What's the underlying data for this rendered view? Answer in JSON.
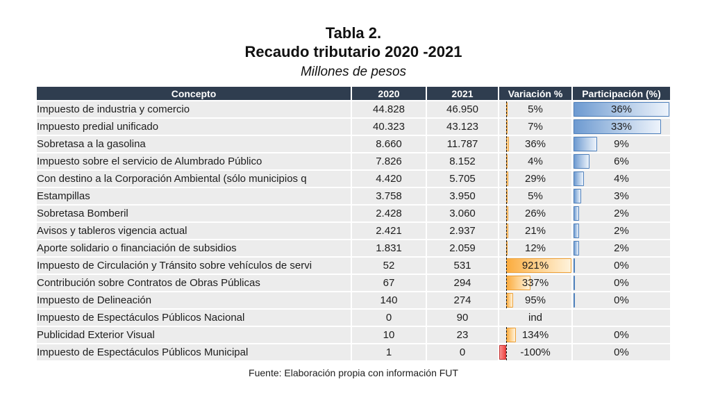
{
  "title": {
    "line1": "Tabla 2.",
    "line2": "Recaudo tributario 2020 -2021",
    "subtitle": "Millones de pesos"
  },
  "footer": "Fuente: Elaboración propia con información FUT",
  "colors": {
    "header_bg": "#2F3D4F",
    "row_bg": "#ECECEC",
    "header_text": "#FFFFFF",
    "body_text": "#1C1C1C",
    "blue_bar_fill": "#6D9AD1",
    "blue_bar_border": "#4F81BD",
    "orange_bar_fill": "#FBAC3F",
    "orange_bar_border": "#F0A136",
    "red_bar_fill": "#EF4341",
    "red_bar_border": "#C23434",
    "axis_dash": "#141414"
  },
  "chart_data": {
    "type": "table",
    "title": "Tabla 2. Recaudo tributario 2020 -2021",
    "subtitle": "Millones de pesos",
    "source": "Fuente: Elaboración propia con información FUT",
    "columns": [
      "Concepto",
      "2020",
      "2021",
      "Variación %",
      "Participación (%)"
    ],
    "bar_scaling": {
      "variacion_axis_min": -100,
      "variacion_axis_max": 921,
      "variacion_axis_position_pct": 10,
      "participacion_bar_max": 36
    },
    "rows": [
      {
        "concepto": "Impuesto de industria y comercio",
        "y2020": "44.828",
        "y2021": "46.950",
        "variacion": "5%",
        "variacion_value": 5,
        "participacion": "36%",
        "participacion_value": 36
      },
      {
        "concepto": "Impuesto predial unificado",
        "y2020": "40.323",
        "y2021": "43.123",
        "variacion": "7%",
        "variacion_value": 7,
        "participacion": "33%",
        "participacion_value": 33
      },
      {
        "concepto": "Sobretasa a la gasolina",
        "y2020": "8.660",
        "y2021": "11.787",
        "variacion": "36%",
        "variacion_value": 36,
        "participacion": "9%",
        "participacion_value": 9
      },
      {
        "concepto": "Impuesto sobre el servicio de Alumbrado Público",
        "y2020": "7.826",
        "y2021": "8.152",
        "variacion": "4%",
        "variacion_value": 4,
        "participacion": "6%",
        "participacion_value": 6
      },
      {
        "concepto": "Con destino a la Corporación Ambiental (sólo municipios q",
        "y2020": "4.420",
        "y2021": "5.705",
        "variacion": "29%",
        "variacion_value": 29,
        "participacion": "4%",
        "participacion_value": 4
      },
      {
        "concepto": "Estampillas",
        "y2020": "3.758",
        "y2021": "3.950",
        "variacion": "5%",
        "variacion_value": 5,
        "participacion": "3%",
        "participacion_value": 3
      },
      {
        "concepto": "Sobretasa Bomberil",
        "y2020": "2.428",
        "y2021": "3.060",
        "variacion": "26%",
        "variacion_value": 26,
        "participacion": "2%",
        "participacion_value": 2
      },
      {
        "concepto": "Avisos y tableros vigencia actual",
        "y2020": "2.421",
        "y2021": "2.937",
        "variacion": "21%",
        "variacion_value": 21,
        "participacion": "2%",
        "participacion_value": 2
      },
      {
        "concepto": "Aporte solidario o financiación de subsidios",
        "y2020": "1.831",
        "y2021": "2.059",
        "variacion": "12%",
        "variacion_value": 12,
        "participacion": "2%",
        "participacion_value": 2
      },
      {
        "concepto": "Impuesto de Circulación y Tránsito sobre vehículos de servi",
        "y2020": "52",
        "y2021": "531",
        "variacion": "921%",
        "variacion_value": 921,
        "participacion": "0%",
        "participacion_value": 0.4
      },
      {
        "concepto": "Contribución sobre Contratos de Obras Públicas",
        "y2020": "67",
        "y2021": "294",
        "variacion": "337%",
        "variacion_value": 337,
        "participacion": "0%",
        "participacion_value": 0.25
      },
      {
        "concepto": "Impuesto de Delineación",
        "y2020": "140",
        "y2021": "274",
        "variacion": "95%",
        "variacion_value": 95,
        "participacion": "0%",
        "participacion_value": 0.2
      },
      {
        "concepto": "Impuesto de Espectáculos Públicos Nacional",
        "y2020": "0",
        "y2021": "90",
        "variacion": "ind",
        "variacion_value": null,
        "participacion": "",
        "participacion_value": null
      },
      {
        "concepto": "Publicidad Exterior Visual",
        "y2020": "10",
        "y2021": "23",
        "variacion": "134%",
        "variacion_value": 134,
        "participacion": "0%",
        "participacion_value": 0
      },
      {
        "concepto": "Impuesto de Espectáculos Públicos Municipal",
        "y2020": "1",
        "y2021": "0",
        "variacion": "-100%",
        "variacion_value": -100,
        "participacion": "0%",
        "participacion_value": 0
      }
    ]
  }
}
